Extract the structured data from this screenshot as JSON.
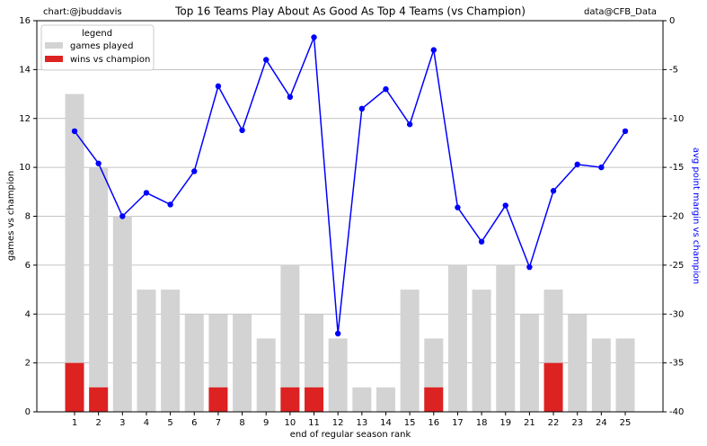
{
  "chart_data": {
    "type": "bar",
    "title": "Top 16 Teams Play About As Good As Top 4 Teams (vs Champion)",
    "left_note": "chart:@jbuddavis",
    "right_note": "data@CFB_Data",
    "x_label": "end of regular season rank",
    "y_label": "games vs champion",
    "y2_label": "avg point margin vs champion",
    "legend_title": "legend",
    "legend_position": "upper left",
    "grid": true,
    "categories": [
      "1",
      "2",
      "3",
      "4",
      "5",
      "6",
      "7",
      "8",
      "9",
      "10",
      "11",
      "12",
      "13",
      "14",
      "15",
      "16",
      "17",
      "18",
      "19",
      "21",
      "22",
      "23",
      "24",
      "25"
    ],
    "series": [
      {
        "name": "games played",
        "type": "bar",
        "color": "#d3d3d3",
        "values": [
          13,
          10,
          8,
          5,
          5,
          4,
          4,
          4,
          3,
          6,
          4,
          3,
          1,
          1,
          5,
          3,
          6,
          5,
          6,
          4,
          5,
          4,
          3,
          3
        ]
      },
      {
        "name": "wins vs champion",
        "type": "bar",
        "color": "#dd2222",
        "values": [
          2,
          1,
          0,
          0,
          0,
          0,
          1,
          0,
          0,
          1,
          1,
          0,
          0,
          0,
          0,
          1,
          0,
          0,
          0,
          0,
          2,
          0,
          0,
          0
        ]
      },
      {
        "type": "line",
        "axis": "y2",
        "color": "#0000ff",
        "values": [
          -11.3,
          -14.6,
          -20,
          -17.6,
          -18.8,
          -15.4,
          -6.7,
          -11.2,
          -4.0,
          -7.8,
          -1.7,
          -32.0,
          -9.0,
          -7.0,
          -10.6,
          -3.0,
          -19.1,
          -22.6,
          -18.9,
          -25.2,
          -17.4,
          -14.7,
          -15.0,
          -11.3
        ]
      }
    ],
    "ylim": [
      0,
      16
    ],
    "yticks": [
      0,
      2,
      4,
      6,
      8,
      10,
      12,
      14,
      16
    ],
    "y2lim": [
      -40,
      0
    ],
    "y2ticks": [
      -40,
      -35,
      -30,
      -25,
      -20,
      -15,
      -10,
      -5,
      0
    ]
  }
}
